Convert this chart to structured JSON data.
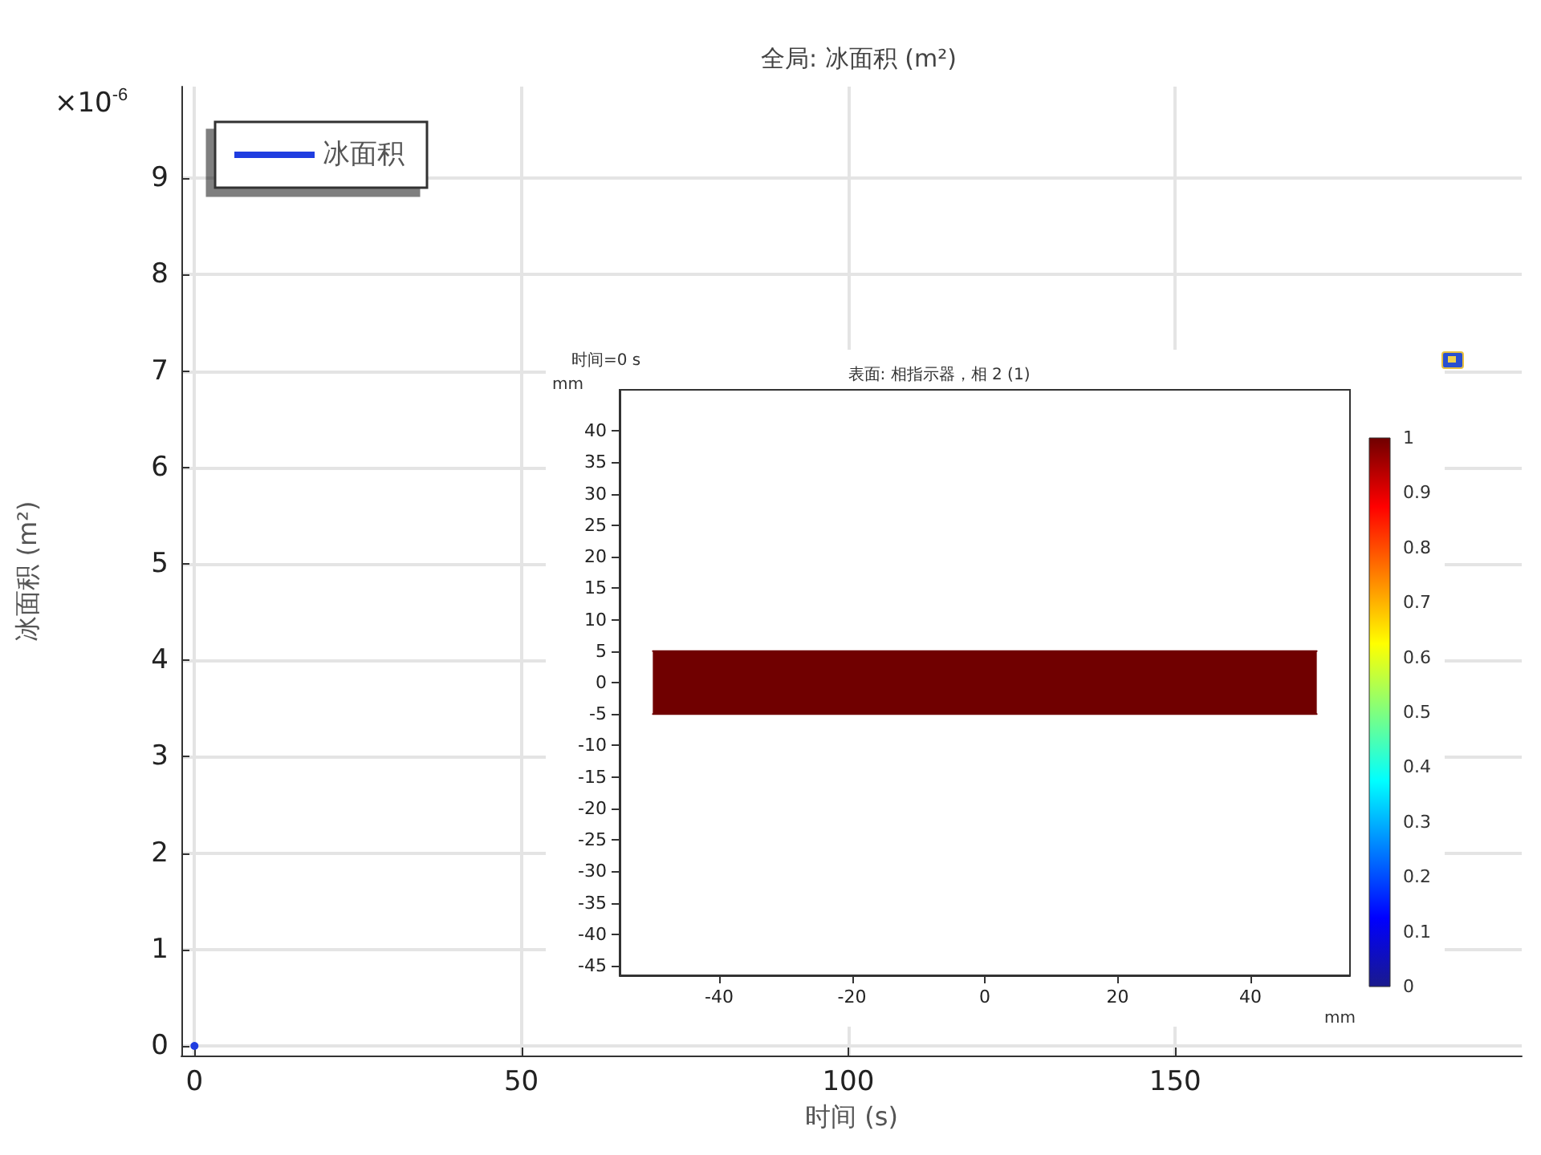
{
  "chart_data": [
    {
      "type": "line",
      "title": "全局: 冰面积 (m²)",
      "xlabel": "时间 (s)",
      "ylabel": "冰面积 (m²)",
      "annotations": [
        "×10$^{-6}$"
      ],
      "x": [
        0
      ],
      "series": [
        {
          "name": "冰面积",
          "color": "#1f3de0",
          "values": [
            0
          ]
        }
      ],
      "xlim": [
        -2,
        203
      ],
      "xticks": [
        0,
        50,
        100,
        150
      ],
      "ylim": [
        -0.1,
        9.95
      ],
      "yticks": [
        0,
        1,
        2,
        3,
        4,
        5,
        6,
        7,
        8,
        9
      ],
      "grid": true,
      "legend": "top left",
      "marker": "circle"
    },
    {
      "type": "area",
      "title": "表面: 相指示器，相 2 (1)",
      "annotations": [
        "时间=0 s"
      ],
      "xlabel": "mm",
      "ylabel": "mm",
      "x": [
        -50,
        50
      ],
      "series": [
        {
          "color": "#700000",
          "values": [
            5,
            5
          ]
        },
        {
          "color": "#700000",
          "values": [
            -5,
            -5
          ]
        }
      ],
      "xlim": [
        -55,
        55
      ],
      "xticks": [
        -40,
        -20,
        0,
        20,
        40
      ],
      "ylim": [
        -46.5,
        46.5
      ],
      "yticks": [
        -45,
        -40,
        -35,
        -30,
        -25,
        -20,
        -15,
        -10,
        -5,
        0,
        5,
        10,
        15,
        20,
        25,
        30,
        35,
        40
      ],
      "clim": [
        0,
        1
      ],
      "cticks": [
        0,
        0.1,
        0.2,
        0.3,
        0.4,
        0.5,
        0.6,
        0.7,
        0.8,
        0.9,
        1
      ]
    }
  ]
}
